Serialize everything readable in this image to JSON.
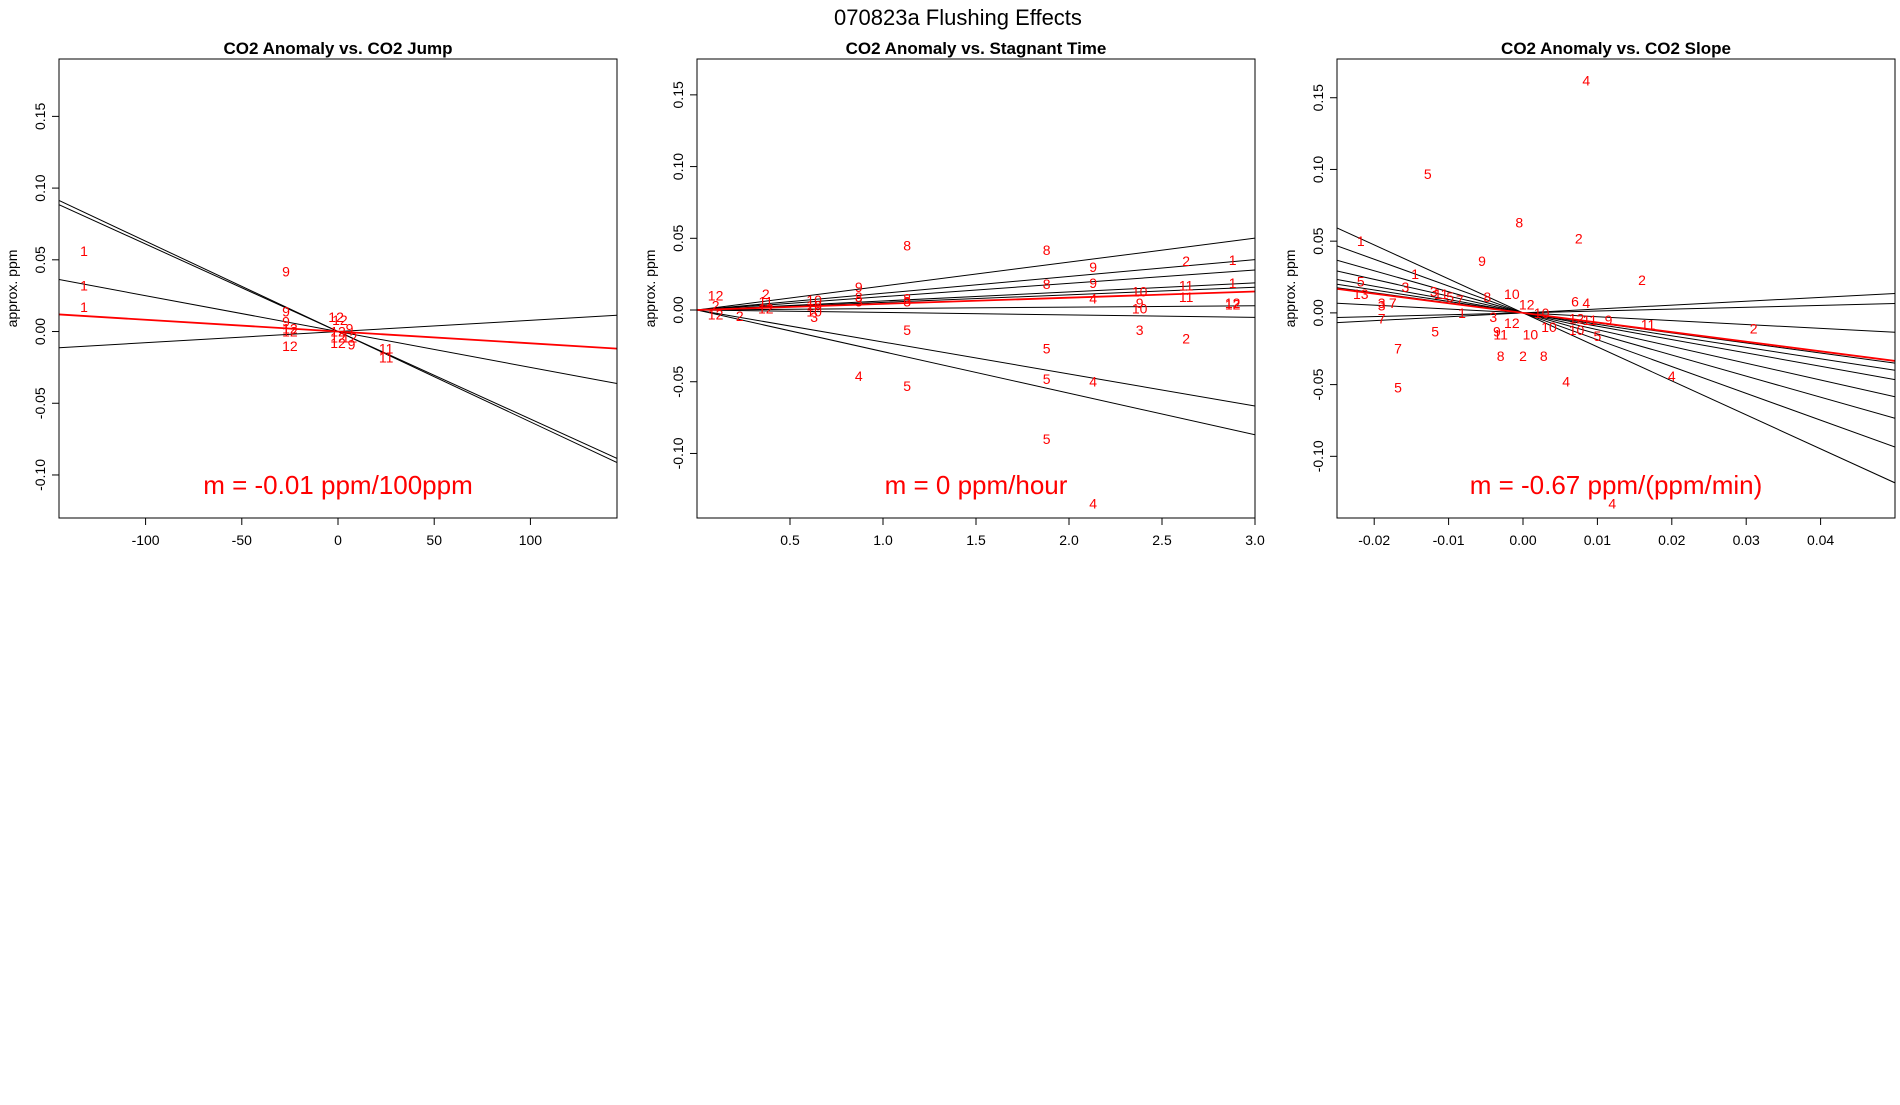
{
  "figure": {
    "title": "070823a   Flushing Effects"
  },
  "colors": {
    "highlight": "#ff0000",
    "line": "#000000",
    "frame": "#000000"
  },
  "chart_data": [
    {
      "type": "scatter",
      "title": "CO2 Anomaly vs. CO2 Jump",
      "xlabel": "",
      "ylabel": "approx. ppm",
      "xlim": [
        -145,
        145
      ],
      "ylim": [
        -0.13,
        0.19
      ],
      "xticks": [
        -100,
        -50,
        0,
        50,
        100
      ],
      "yticks": [
        -0.1,
        -0.05,
        0,
        0.05,
        0.1,
        0.15
      ],
      "xtick_labels": [
        "-100",
        "-50",
        "0",
        "50",
        "100"
      ],
      "ytick_labels": [
        "-0.10",
        "-0.05",
        "0.00",
        "0.05",
        "0.10",
        "0.15"
      ],
      "annotation": "m = -0.01 ppm/100ppm",
      "points": [
        {
          "x": -132,
          "y": 0.056,
          "label": "1"
        },
        {
          "x": -132,
          "y": 0.032,
          "label": "1"
        },
        {
          "x": -132,
          "y": 0.017,
          "label": "1"
        },
        {
          "x": -27,
          "y": 0.042,
          "label": "9"
        },
        {
          "x": -27,
          "y": 0.014,
          "label": "9"
        },
        {
          "x": -27,
          "y": 0.007,
          "label": "9"
        },
        {
          "x": -25,
          "y": 0.002,
          "label": "12"
        },
        {
          "x": -25,
          "y": 0.0,
          "label": "12"
        },
        {
          "x": -25,
          "y": -0.01,
          "label": "12"
        },
        {
          "x": -1,
          "y": 0.01,
          "label": "12"
        },
        {
          "x": 1,
          "y": 0.008,
          "label": "12"
        },
        {
          "x": 6,
          "y": 0.002,
          "label": "9"
        },
        {
          "x": 0,
          "y": 0.0,
          "label": "12"
        },
        {
          "x": 0,
          "y": -0.004,
          "label": "12"
        },
        {
          "x": 0,
          "y": -0.008,
          "label": "12"
        },
        {
          "x": 6,
          "y": -0.004,
          "label": "12"
        },
        {
          "x": 7,
          "y": -0.009,
          "label": "9"
        },
        {
          "x": 25,
          "y": -0.012,
          "label": "11"
        },
        {
          "x": 25,
          "y": -0.018,
          "label": "11"
        }
      ],
      "fit_lines": [
        {
          "slope": -0.00063,
          "color": "line"
        },
        {
          "slope": -0.00061,
          "color": "line"
        },
        {
          "slope": -0.00025,
          "color": "line"
        },
        {
          "slope": 7.8e-05,
          "color": "line"
        },
        {
          "slope": -8.22e-05,
          "color": "highlight"
        }
      ]
    },
    {
      "type": "scatter",
      "title": "CO2 Anomaly vs. Stagnant Time",
      "xlabel": "",
      "ylabel": "approx. ppm",
      "xlim": [
        0.0,
        3.0
      ],
      "ylim": [
        -0.145,
        0.175
      ],
      "xticks": [
        0.5,
        1.0,
        1.5,
        2.0,
        2.5,
        3.0
      ],
      "yticks": [
        -0.1,
        -0.05,
        0,
        0.05,
        0.1,
        0.15
      ],
      "xtick_labels": [
        "0.5",
        "1.0",
        "1.5",
        "2.0",
        "2.5",
        "3.0"
      ],
      "ytick_labels": [
        "-0.10",
        "-0.05",
        "0.00",
        "0.05",
        "0.10",
        "0.15"
      ],
      "annotation": "m = 0 ppm/hour",
      "points": [
        {
          "x": 0.1,
          "y": 0.01,
          "label": "12"
        },
        {
          "x": 0.1,
          "y": 0.003,
          "label": "2"
        },
        {
          "x": 0.1,
          "y": -0.003,
          "label": "12"
        },
        {
          "x": 0.23,
          "y": -0.004,
          "label": "2"
        },
        {
          "x": 0.37,
          "y": 0.011,
          "label": "2"
        },
        {
          "x": 0.37,
          "y": 0.006,
          "label": "11"
        },
        {
          "x": 0.37,
          "y": 0.001,
          "label": "12"
        },
        {
          "x": 0.63,
          "y": 0.007,
          "label": "10"
        },
        {
          "x": 0.63,
          "y": 0.003,
          "label": "10"
        },
        {
          "x": 0.63,
          "y": -0.001,
          "label": "10"
        },
        {
          "x": 0.63,
          "y": -0.005,
          "label": "3"
        },
        {
          "x": 0.87,
          "y": 0.016,
          "label": "9"
        },
        {
          "x": 0.87,
          "y": 0.009,
          "label": "8"
        },
        {
          "x": 0.87,
          "y": 0.006,
          "label": "3"
        },
        {
          "x": 0.87,
          "y": -0.046,
          "label": "4"
        },
        {
          "x": 1.13,
          "y": 0.045,
          "label": "8"
        },
        {
          "x": 1.13,
          "y": 0.008,
          "label": "8"
        },
        {
          "x": 1.13,
          "y": 0.006,
          "label": "3"
        },
        {
          "x": 1.13,
          "y": -0.014,
          "label": "5"
        },
        {
          "x": 1.13,
          "y": -0.053,
          "label": "5"
        },
        {
          "x": 1.88,
          "y": 0.042,
          "label": "8"
        },
        {
          "x": 1.88,
          "y": 0.018,
          "label": "8"
        },
        {
          "x": 1.88,
          "y": -0.027,
          "label": "5"
        },
        {
          "x": 1.88,
          "y": -0.048,
          "label": "5"
        },
        {
          "x": 1.88,
          "y": -0.09,
          "label": "5"
        },
        {
          "x": 2.13,
          "y": 0.03,
          "label": "9"
        },
        {
          "x": 2.13,
          "y": 0.019,
          "label": "9"
        },
        {
          "x": 2.13,
          "y": 0.008,
          "label": "4"
        },
        {
          "x": 2.13,
          "y": -0.05,
          "label": "4"
        },
        {
          "x": 2.13,
          "y": -0.135,
          "label": "4"
        },
        {
          "x": 2.38,
          "y": 0.013,
          "label": "10"
        },
        {
          "x": 2.38,
          "y": 0.005,
          "label": "9"
        },
        {
          "x": 2.38,
          "y": 0.001,
          "label": "10"
        },
        {
          "x": 2.38,
          "y": -0.014,
          "label": "3"
        },
        {
          "x": 2.63,
          "y": 0.034,
          "label": "2"
        },
        {
          "x": 2.63,
          "y": 0.017,
          "label": "11"
        },
        {
          "x": 2.63,
          "y": 0.009,
          "label": "11"
        },
        {
          "x": 2.63,
          "y": -0.02,
          "label": "2"
        },
        {
          "x": 2.88,
          "y": 0.035,
          "label": "1"
        },
        {
          "x": 2.88,
          "y": 0.019,
          "label": "1"
        },
        {
          "x": 2.88,
          "y": 0.005,
          "label": "12"
        },
        {
          "x": 2.88,
          "y": 0.004,
          "label": "12"
        }
      ],
      "fit_lines": [
        {
          "slope": 0.0167,
          "color": "line"
        },
        {
          "slope": 0.0117,
          "color": "line"
        },
        {
          "slope": 0.0093,
          "color": "line"
        },
        {
          "slope": 0.0063,
          "color": "line"
        },
        {
          "slope": 0.0053,
          "color": "line"
        },
        {
          "slope": 0.001,
          "color": "line"
        },
        {
          "slope": -0.0017,
          "color": "line"
        },
        {
          "slope": -0.0223,
          "color": "line"
        },
        {
          "slope": -0.029,
          "color": "line"
        },
        {
          "slope": 0.0043,
          "color": "highlight"
        }
      ]
    },
    {
      "type": "scatter",
      "title": "CO2 Anomaly vs. CO2 Slope",
      "xlabel": "",
      "ylabel": "approx. ppm",
      "xlim": [
        -0.025,
        0.05
      ],
      "ylim": [
        -0.143,
        0.177
      ],
      "xticks": [
        -0.02,
        -0.01,
        0.0,
        0.01,
        0.02,
        0.03,
        0.04
      ],
      "yticks": [
        -0.1,
        -0.05,
        0,
        0.05,
        0.1,
        0.15
      ],
      "xtick_labels": [
        "-0.02",
        "-0.01",
        "0.00",
        "0.01",
        "0.02",
        "0.03",
        "0.04"
      ],
      "ytick_labels": [
        "-0.10",
        "-0.05",
        "0.00",
        "0.05",
        "0.10",
        "0.15"
      ],
      "annotation": "m = -0.67 ppm/(ppm/min)",
      "points": [
        {
          "x": 0.0085,
          "y": 0.162,
          "label": "4"
        },
        {
          "x": -0.0128,
          "y": 0.097,
          "label": "5"
        },
        {
          "x": -0.0005,
          "y": 0.063,
          "label": "8"
        },
        {
          "x": 0.0075,
          "y": 0.052,
          "label": "2"
        },
        {
          "x": -0.0055,
          "y": 0.036,
          "label": "9"
        },
        {
          "x": 0.016,
          "y": 0.023,
          "label": "2"
        },
        {
          "x": -0.0218,
          "y": 0.05,
          "label": "1"
        },
        {
          "x": -0.0145,
          "y": 0.027,
          "label": "1"
        },
        {
          "x": -0.0158,
          "y": 0.018,
          "label": "3"
        },
        {
          "x": -0.012,
          "y": 0.015,
          "label": "3"
        },
        {
          "x": -0.011,
          "y": 0.013,
          "label": "11"
        },
        {
          "x": -0.0098,
          "y": 0.011,
          "label": "5"
        },
        {
          "x": -0.0085,
          "y": 0.009,
          "label": "7"
        },
        {
          "x": -0.0218,
          "y": 0.022,
          "label": "5"
        },
        {
          "x": -0.0218,
          "y": 0.013,
          "label": "13"
        },
        {
          "x": -0.019,
          "y": 0.007,
          "label": "3"
        },
        {
          "x": -0.019,
          "y": 0.005,
          "label": "3"
        },
        {
          "x": -0.0175,
          "y": 0.007,
          "label": "7"
        },
        {
          "x": -0.019,
          "y": -0.004,
          "label": "7"
        },
        {
          "x": -0.0168,
          "y": -0.025,
          "label": "7"
        },
        {
          "x": -0.0168,
          "y": -0.052,
          "label": "5"
        },
        {
          "x": -0.0118,
          "y": -0.013,
          "label": "5"
        },
        {
          "x": -0.0082,
          "y": 0.0,
          "label": "1"
        },
        {
          "x": -0.0048,
          "y": 0.011,
          "label": "8"
        },
        {
          "x": -0.0015,
          "y": 0.013,
          "label": "10"
        },
        {
          "x": 0.0005,
          "y": 0.006,
          "label": "12"
        },
        {
          "x": 0.0025,
          "y": 0.0,
          "label": "10"
        },
        {
          "x": -0.004,
          "y": -0.003,
          "label": "3"
        },
        {
          "x": -0.0015,
          "y": -0.007,
          "label": "12"
        },
        {
          "x": -0.0035,
          "y": -0.013,
          "label": "9"
        },
        {
          "x": -0.003,
          "y": -0.015,
          "label": "11"
        },
        {
          "x": 0.001,
          "y": -0.015,
          "label": "10"
        },
        {
          "x": 0.0035,
          "y": -0.01,
          "label": "10"
        },
        {
          "x": -0.003,
          "y": -0.03,
          "label": "8"
        },
        {
          "x": 0.0,
          "y": -0.03,
          "label": "2"
        },
        {
          "x": 0.0028,
          "y": -0.03,
          "label": "8"
        },
        {
          "x": 0.007,
          "y": 0.008,
          "label": "6"
        },
        {
          "x": 0.0085,
          "y": 0.007,
          "label": "4"
        },
        {
          "x": 0.0072,
          "y": -0.004,
          "label": "12"
        },
        {
          "x": 0.009,
          "y": -0.005,
          "label": "11"
        },
        {
          "x": 0.0115,
          "y": -0.005,
          "label": "9"
        },
        {
          "x": 0.0072,
          "y": -0.012,
          "label": "10"
        },
        {
          "x": 0.01,
          "y": -0.016,
          "label": "5"
        },
        {
          "x": 0.0168,
          "y": -0.008,
          "label": "11"
        },
        {
          "x": 0.031,
          "y": -0.011,
          "label": "2"
        },
        {
          "x": 0.0058,
          "y": -0.048,
          "label": "4"
        },
        {
          "x": 0.02,
          "y": -0.044,
          "label": "4"
        },
        {
          "x": 0.012,
          "y": -0.133,
          "label": "4"
        }
      ],
      "fit_lines": [
        {
          "slope": -2.37,
          "color": "line"
        },
        {
          "slope": -1.87,
          "color": "line"
        },
        {
          "slope": -1.47,
          "color": "line"
        },
        {
          "slope": -1.17,
          "color": "line"
        },
        {
          "slope": -0.93,
          "color": "line"
        },
        {
          "slope": -0.8,
          "color": "line"
        },
        {
          "slope": -0.7,
          "color": "line"
        },
        {
          "slope": -0.27,
          "color": "line"
        },
        {
          "slope": 0.13,
          "color": "line"
        },
        {
          "slope": 0.27,
          "color": "line"
        },
        {
          "slope": -0.67,
          "color": "highlight"
        }
      ]
    }
  ]
}
